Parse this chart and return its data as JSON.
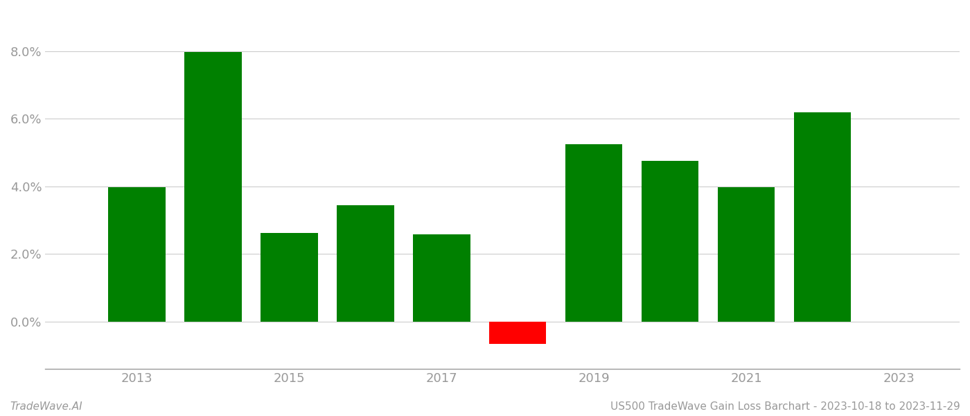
{
  "years": [
    2013,
    2014,
    2015,
    2016,
    2017,
    2018,
    2019,
    2020,
    2021,
    2022
  ],
  "values": [
    0.0397,
    0.0797,
    0.0262,
    0.0345,
    0.0258,
    -0.0065,
    0.0525,
    0.0475,
    0.0397,
    0.0618
  ],
  "bar_colors": [
    "#008000",
    "#008000",
    "#008000",
    "#008000",
    "#008000",
    "#ff0000",
    "#008000",
    "#008000",
    "#008000",
    "#008000"
  ],
  "footer_left": "TradeWave.AI",
  "footer_right": "US500 TradeWave Gain Loss Barchart - 2023-10-18 to 2023-11-29",
  "background_color": "#ffffff",
  "grid_color": "#cccccc",
  "axis_color": "#999999",
  "tick_label_color": "#999999",
  "ylim_min": -0.014,
  "ylim_max": 0.092,
  "bar_width": 0.75,
  "xlim_min": 2011.8,
  "xlim_max": 2023.8,
  "xtick_positions": [
    2013,
    2015,
    2017,
    2019,
    2021,
    2023
  ],
  "ytick_positions": [
    0.0,
    0.02,
    0.04,
    0.06,
    0.08
  ],
  "tick_fontsize": 13,
  "footer_fontsize": 11
}
